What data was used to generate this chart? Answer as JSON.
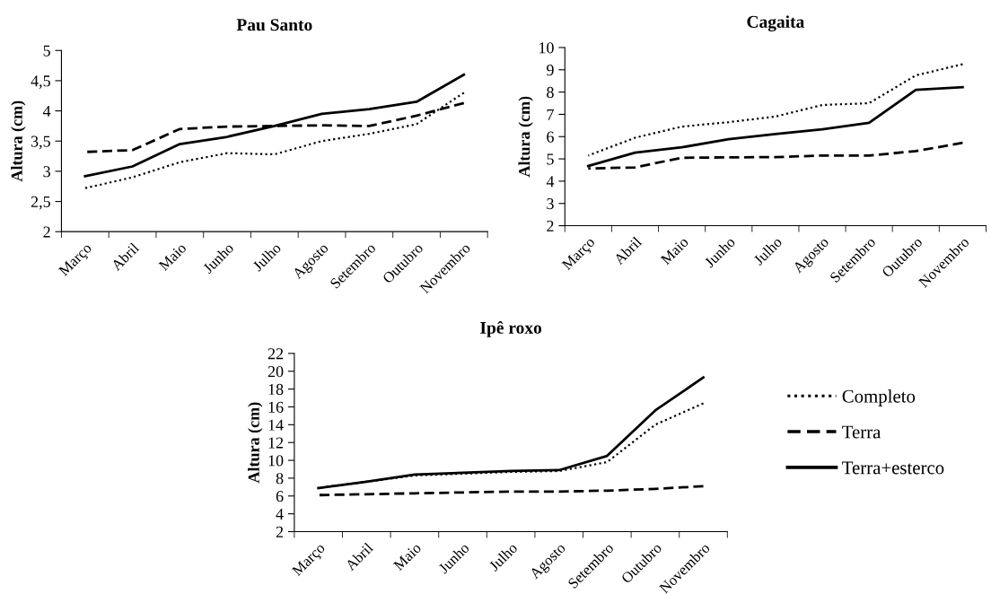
{
  "chart_data": [
    {
      "type": "line",
      "title": "Pau Santo",
      "ylabel": "Altura (cm)",
      "categories": [
        "Março",
        "Abril",
        "Maio",
        "Junho",
        "Julho",
        "Agosto",
        "Setembro",
        "Outubro",
        "Novembro"
      ],
      "ylim": [
        2,
        5
      ],
      "yticks": [
        2,
        {
          "value": 2.5,
          "label": "2,5"
        },
        3,
        {
          "value": 3.5,
          "label": "3,5"
        },
        4,
        {
          "value": 4.5,
          "label": "4,5"
        },
        5
      ],
      "grid": false,
      "legend": false,
      "series": [
        {
          "color": "#000000",
          "line_style": "dotted",
          "values": [
            2.72,
            2.9,
            3.15,
            3.3,
            3.28,
            3.5,
            3.62,
            3.78,
            4.3
          ]
        },
        {
          "color": "#000000",
          "line_style": "dashed",
          "values": [
            3.32,
            3.35,
            3.7,
            3.74,
            3.75,
            3.76,
            3.75,
            3.92,
            4.13
          ]
        },
        {
          "color": "#000000",
          "line_style": "solid",
          "values": [
            2.92,
            3.08,
            3.45,
            3.57,
            3.75,
            3.95,
            4.03,
            4.15,
            4.6
          ]
        }
      ]
    },
    {
      "type": "line",
      "title": "Cagaita",
      "ylabel": "Altura (cm)",
      "categories": [
        "Março",
        "Abril",
        "Maio",
        "Junho",
        "Julho",
        "Agosto",
        "Setembro",
        "Outubro",
        "Novembro"
      ],
      "ylim": [
        2,
        10
      ],
      "yticks": [
        2,
        3,
        4,
        5,
        6,
        7,
        8,
        9,
        10
      ],
      "grid": false,
      "legend": false,
      "series": [
        {
          "color": "#000000",
          "line_style": "dotted",
          "values": [
            5.15,
            5.95,
            6.45,
            6.65,
            6.9,
            7.42,
            7.5,
            8.75,
            9.25
          ]
        },
        {
          "color": "#000000",
          "line_style": "dashed",
          "values": [
            4.57,
            4.62,
            5.05,
            5.07,
            5.08,
            5.15,
            5.15,
            5.35,
            5.72
          ]
        },
        {
          "color": "#000000",
          "line_style": "solid",
          "values": [
            4.68,
            5.28,
            5.52,
            5.88,
            6.12,
            6.33,
            6.62,
            8.1,
            8.22
          ]
        }
      ]
    },
    {
      "type": "line",
      "title": "Ipê roxo",
      "ylabel": "Altura (cm)",
      "categories": [
        "Março",
        "Abril",
        "Maio",
        "Junho",
        "Julho",
        "Agosto",
        "Setembro",
        "Outubro",
        "Novembro"
      ],
      "ylim": [
        2,
        22
      ],
      "yticks": [
        2,
        4,
        6,
        8,
        10,
        12,
        14,
        16,
        18,
        20,
        22
      ],
      "grid": false,
      "legend": "right",
      "series": [
        {
          "name": "Completo",
          "color": "#000000",
          "line_style": "dotted",
          "values": [
            6.9,
            7.6,
            8.3,
            8.5,
            8.7,
            8.8,
            9.8,
            14.0,
            16.4
          ]
        },
        {
          "name": "Terra",
          "color": "#000000",
          "line_style": "dashed",
          "values": [
            6.1,
            6.2,
            6.3,
            6.4,
            6.5,
            6.5,
            6.6,
            6.8,
            7.1
          ]
        },
        {
          "name": "Terra+esterco",
          "color": "#000000",
          "line_style": "solid",
          "values": [
            6.9,
            7.6,
            8.4,
            8.6,
            8.8,
            8.9,
            10.5,
            15.6,
            19.3
          ]
        }
      ]
    }
  ]
}
